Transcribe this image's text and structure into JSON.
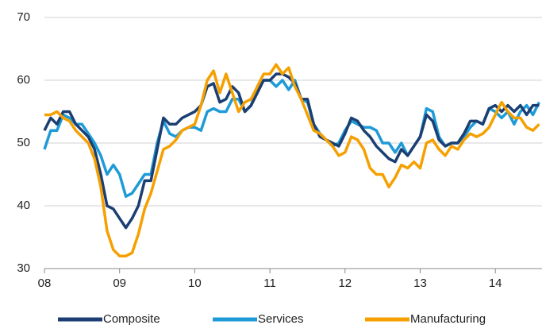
{
  "chart_data": {
    "type": "line",
    "categories": [
      "08",
      null,
      null,
      null,
      null,
      null,
      null,
      null,
      null,
      null,
      null,
      null,
      "09",
      null,
      null,
      null,
      null,
      null,
      null,
      null,
      null,
      null,
      null,
      null,
      "10",
      null,
      null,
      null,
      null,
      null,
      null,
      null,
      null,
      null,
      null,
      null,
      "11",
      null,
      null,
      null,
      null,
      null,
      null,
      null,
      null,
      null,
      null,
      null,
      "12",
      null,
      null,
      null,
      null,
      null,
      null,
      null,
      null,
      null,
      null,
      null,
      "13",
      null,
      null,
      null,
      null,
      null,
      null,
      null,
      null,
      null,
      null,
      null,
      "14",
      null,
      null,
      null,
      null,
      null,
      null,
      null
    ],
    "series": [
      {
        "name": "Composite",
        "color": "#1b3f73",
        "values": [
          52,
          54,
          53,
          55,
          55,
          53,
          52,
          51,
          49,
          45,
          40,
          39.5,
          38,
          36.5,
          38,
          40,
          44,
          44,
          49,
          54,
          53,
          53,
          54,
          54.5,
          55,
          56,
          59,
          59.5,
          56.5,
          57,
          59,
          58,
          55,
          56,
          58,
          60,
          60,
          61,
          61,
          60.5,
          59.5,
          57,
          57,
          53,
          51,
          50.5,
          50,
          49.5,
          51.5,
          54,
          53.5,
          52,
          51,
          49.5,
          48.5,
          47.5,
          47,
          49,
          48,
          49.5,
          51,
          54.5,
          53.5,
          50.5,
          49.5,
          50,
          50,
          51.5,
          53.5,
          53.5,
          53,
          55.5,
          56,
          55,
          56,
          55,
          56,
          54.5,
          56,
          56
        ]
      },
      {
        "name": "Services",
        "color": "#1e9bd7",
        "values": [
          49,
          52,
          52,
          54.5,
          54,
          53,
          53,
          51.5,
          50,
          48,
          45,
          46.5,
          45,
          41.5,
          42,
          43.5,
          45,
          45,
          50,
          53.5,
          51.5,
          51,
          52,
          52.5,
          52.5,
          52,
          55,
          55.5,
          55,
          55,
          57,
          57,
          55,
          56,
          59,
          60,
          60,
          59,
          60,
          58.5,
          60,
          57,
          56.5,
          53,
          51.5,
          50.5,
          49.5,
          50,
          52,
          53.5,
          53,
          52.5,
          52.5,
          52,
          50,
          50,
          48.5,
          50,
          48,
          49.5,
          51,
          55.5,
          55,
          51,
          49.5,
          50,
          50,
          51,
          52.5,
          53.5,
          53,
          55.5,
          55,
          54,
          55,
          53,
          55,
          56,
          54.5,
          56.5
        ]
      },
      {
        "name": "Manufacturing",
        "color": "#f5a000",
        "values": [
          54.5,
          54.5,
          55,
          54,
          53.5,
          52,
          51,
          50,
          47.5,
          43,
          36,
          33,
          32,
          32,
          32.5,
          35.5,
          39.5,
          42,
          45.5,
          49,
          49.5,
          50.5,
          52,
          52.5,
          53,
          56,
          60,
          61.5,
          58,
          61,
          58,
          55,
          56.5,
          57,
          59,
          61,
          61,
          62.5,
          61,
          62,
          59,
          57,
          54.5,
          52,
          51.5,
          50.5,
          49.5,
          48,
          48.5,
          51,
          50.5,
          49,
          46,
          45,
          45,
          43,
          44.5,
          46.5,
          46,
          47,
          46,
          50,
          50.5,
          49,
          48,
          49.5,
          49,
          50.5,
          51.5,
          51,
          51.5,
          52.5,
          54.5,
          56.5,
          55,
          54,
          54,
          52.5,
          52,
          53
        ]
      }
    ],
    "ylim": [
      30,
      70
    ],
    "yticks": [
      30,
      40,
      50,
      60,
      70
    ],
    "grid": true
  }
}
